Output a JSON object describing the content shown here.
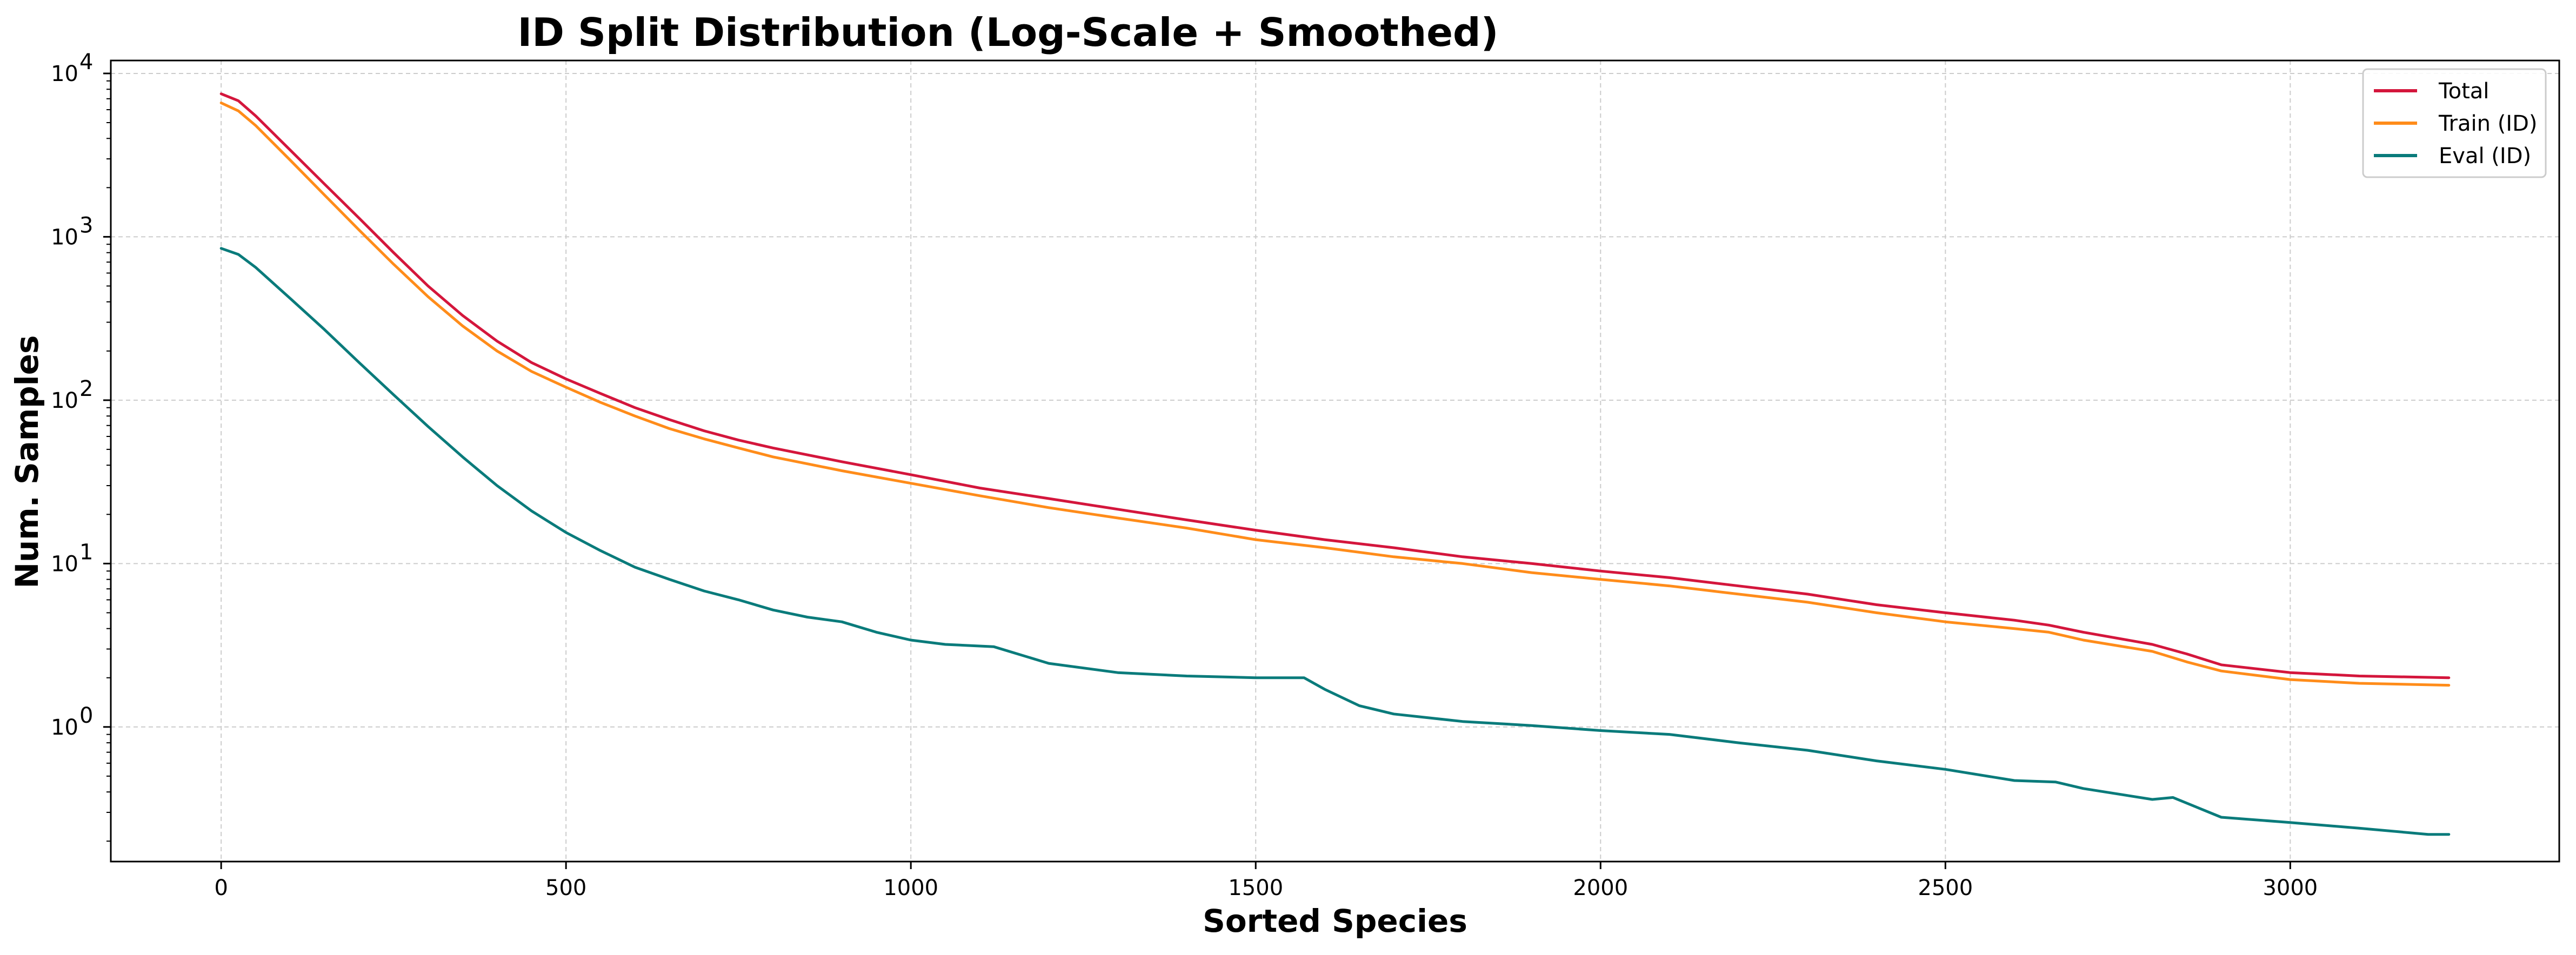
{
  "chart_data": {
    "type": "line",
    "title": "ID Split Distribution (Log-Scale + Smoothed)",
    "xlabel": "Sorted Species",
    "ylabel": "Num. Samples",
    "xlim": [
      -160,
      3390
    ],
    "ylim": [
      0.15,
      12000
    ],
    "yscale": "log",
    "xticks": [
      0,
      500,
      1000,
      1500,
      2000,
      2500,
      3000
    ],
    "xtick_labels": [
      "0",
      "500",
      "1000",
      "1500",
      "2000",
      "2500",
      "3000"
    ],
    "yticks": [
      1,
      10,
      100,
      1000,
      10000
    ],
    "ytick_labels": [
      "10",
      "10",
      "10",
      "10",
      "10"
    ],
    "ytick_exponents": [
      "0",
      "1",
      "2",
      "3",
      "4"
    ],
    "grid": true,
    "legend_position": "top-right",
    "series": [
      {
        "name": "Total",
        "color": "#d4163c",
        "x": [
          0,
          25,
          50,
          100,
          150,
          200,
          250,
          300,
          350,
          400,
          450,
          500,
          550,
          600,
          650,
          700,
          750,
          800,
          900,
          1000,
          1100,
          1200,
          1300,
          1400,
          1500,
          1600,
          1700,
          1800,
          1900,
          2000,
          2100,
          2200,
          2300,
          2400,
          2500,
          2600,
          2650,
          2700,
          2800,
          2850,
          2900,
          3000,
          3100,
          3230
        ],
        "values": [
          7500,
          6800,
          5500,
          3400,
          2100,
          1300,
          800,
          500,
          330,
          230,
          170,
          135,
          110,
          90,
          76,
          65,
          57,
          51,
          42,
          35,
          29,
          25,
          21.5,
          18.5,
          16,
          14,
          12.5,
          11,
          10,
          9,
          8.2,
          7.3,
          6.5,
          5.6,
          5,
          4.5,
          4.2,
          3.8,
          3.2,
          2.8,
          2.4,
          2.15,
          2.05,
          2.0
        ]
      },
      {
        "name": "Train (ID)",
        "color": "#ff8c1a",
        "x": [
          0,
          25,
          50,
          100,
          150,
          200,
          250,
          300,
          350,
          400,
          450,
          500,
          550,
          600,
          650,
          700,
          750,
          800,
          900,
          1000,
          1100,
          1200,
          1300,
          1400,
          1500,
          1600,
          1700,
          1800,
          1900,
          2000,
          2100,
          2200,
          2300,
          2400,
          2500,
          2600,
          2650,
          2700,
          2800,
          2850,
          2900,
          3000,
          3100,
          3230
        ],
        "values": [
          6600,
          5900,
          4800,
          2950,
          1800,
          1100,
          680,
          430,
          285,
          200,
          150,
          120,
          97,
          80,
          67,
          58,
          51,
          45,
          37,
          31,
          26,
          22,
          19,
          16.5,
          14,
          12.5,
          11,
          10,
          8.8,
          8,
          7.3,
          6.5,
          5.8,
          5,
          4.4,
          4,
          3.8,
          3.4,
          2.9,
          2.5,
          2.2,
          1.95,
          1.85,
          1.8
        ]
      },
      {
        "name": "Eval (ID)",
        "color": "#0a7b7b",
        "x": [
          0,
          25,
          50,
          100,
          150,
          200,
          250,
          300,
          350,
          400,
          450,
          500,
          550,
          600,
          650,
          700,
          750,
          800,
          850,
          900,
          950,
          1000,
          1050,
          1120,
          1200,
          1300,
          1400,
          1500,
          1570,
          1600,
          1650,
          1700,
          1800,
          1900,
          2000,
          2100,
          2200,
          2300,
          2400,
          2500,
          2600,
          2660,
          2700,
          2800,
          2830,
          2900,
          3000,
          3100,
          3200,
          3230
        ],
        "values": [
          850,
          780,
          650,
          420,
          270,
          170,
          108,
          69,
          45,
          30,
          21,
          15.5,
          12,
          9.5,
          8,
          6.8,
          6,
          5.2,
          4.7,
          4.4,
          3.8,
          3.4,
          3.2,
          3.1,
          2.45,
          2.15,
          2.05,
          2.0,
          2.0,
          1.7,
          1.35,
          1.2,
          1.08,
          1.02,
          0.95,
          0.9,
          0.8,
          0.72,
          0.62,
          0.55,
          0.47,
          0.46,
          0.42,
          0.36,
          0.37,
          0.28,
          0.26,
          0.24,
          0.22,
          0.22
        ]
      }
    ]
  }
}
